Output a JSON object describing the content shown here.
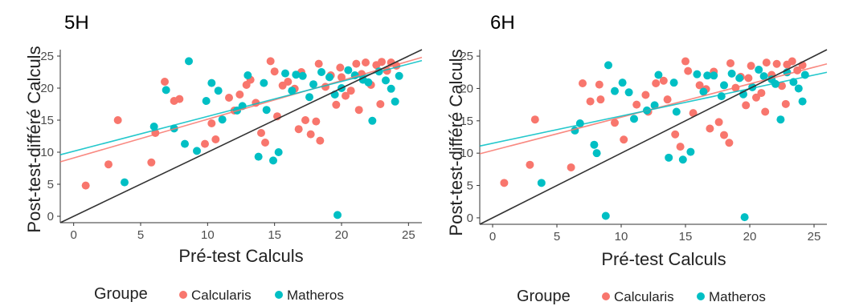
{
  "chart_data": [
    {
      "type": "scatter",
      "title": "5H",
      "xlabel": "Pré-test Calculs",
      "ylabel": "Post-test-différé Calculs",
      "xlim": [
        -1,
        26
      ],
      "ylim": [
        -1,
        26
      ],
      "xticks": [
        "0",
        "5",
        "10",
        "15",
        "20",
        "25"
      ],
      "yticks": [
        "0",
        "5",
        "10",
        "15",
        "20",
        "25"
      ],
      "grid": false,
      "series": [
        {
          "name": "Calcularis",
          "color": "#F8766D",
          "points": [
            [
              0.9,
              4.8
            ],
            [
              2.6,
              8.1
            ],
            [
              3.3,
              15.0
            ],
            [
              5.8,
              8.4
            ],
            [
              6.1,
              13.0
            ],
            [
              6.8,
              21.0
            ],
            [
              7.5,
              18.0
            ],
            [
              7.9,
              18.3
            ],
            [
              9.8,
              11.3
            ],
            [
              10.3,
              14.5
            ],
            [
              10.6,
              12.0
            ],
            [
              11.6,
              18.5
            ],
            [
              12.4,
              19.0
            ],
            [
              12.9,
              20.5
            ],
            [
              13.6,
              17.7
            ],
            [
              14.0,
              13.0
            ],
            [
              14.3,
              11.5
            ],
            [
              14.7,
              24.2
            ],
            [
              15.2,
              15.6
            ],
            [
              15.6,
              20.4
            ],
            [
              16.0,
              21.0
            ],
            [
              16.5,
              19.9
            ],
            [
              17.0,
              22.5
            ],
            [
              17.3,
              15.0
            ],
            [
              17.7,
              12.8
            ],
            [
              18.1,
              14.8
            ],
            [
              18.4,
              11.8
            ],
            [
              18.8,
              20.2
            ],
            [
              19.2,
              22.0
            ],
            [
              19.6,
              17.4
            ],
            [
              19.9,
              23.2
            ],
            [
              20.3,
              18.8
            ],
            [
              20.7,
              19.6
            ],
            [
              21.1,
              23.8
            ],
            [
              21.5,
              22.2
            ],
            [
              21.8,
              24.0
            ],
            [
              22.2,
              20.5
            ],
            [
              22.6,
              23.6
            ],
            [
              23.0,
              24.1
            ],
            [
              23.4,
              22.7
            ],
            [
              23.7,
              24.0
            ],
            [
              24.1,
              23.5
            ],
            [
              22.9,
              17.5
            ],
            [
              21.3,
              16.6
            ],
            [
              20.0,
              21.7
            ],
            [
              18.3,
              23.8
            ],
            [
              16.8,
              13.6
            ],
            [
              15.0,
              22.6
            ],
            [
              13.2,
              21.3
            ],
            [
              12.0,
              16.5
            ]
          ],
          "trend": [
            [
              -1,
              8.5
            ],
            [
              26,
              24.8
            ]
          ]
        },
        {
          "name": "Matheros",
          "color": "#00BFC4",
          "points": [
            [
              3.8,
              5.3
            ],
            [
              6.0,
              14.0
            ],
            [
              6.9,
              19.7
            ],
            [
              7.5,
              13.7
            ],
            [
              8.6,
              24.2
            ],
            [
              9.2,
              10.2
            ],
            [
              9.9,
              18.0
            ],
            [
              10.3,
              20.8
            ],
            [
              11.1,
              15.1
            ],
            [
              12.2,
              16.5
            ],
            [
              13.0,
              22.0
            ],
            [
              13.8,
              9.3
            ],
            [
              14.4,
              16.6
            ],
            [
              14.9,
              8.7
            ],
            [
              15.3,
              10.0
            ],
            [
              15.8,
              22.3
            ],
            [
              16.3,
              19.6
            ],
            [
              17.1,
              21.9
            ],
            [
              17.6,
              18.6
            ],
            [
              18.5,
              22.5
            ],
            [
              19.1,
              21.7
            ],
            [
              19.7,
              0.2
            ],
            [
              20.0,
              20.0
            ],
            [
              20.5,
              22.8
            ],
            [
              21.0,
              22.0
            ],
            [
              21.6,
              21.3
            ],
            [
              22.0,
              20.9
            ],
            [
              22.3,
              14.9
            ],
            [
              22.8,
              22.6
            ],
            [
              23.3,
              21.2
            ],
            [
              23.7,
              19.9
            ],
            [
              24.0,
              17.9
            ],
            [
              24.3,
              21.9
            ],
            [
              19.5,
              19.0
            ],
            [
              17.9,
              20.6
            ],
            [
              16.6,
              22.1
            ],
            [
              14.2,
              20.8
            ],
            [
              12.6,
              17.2
            ],
            [
              10.8,
              19.6
            ],
            [
              8.3,
              11.3
            ]
          ],
          "trend": [
            [
              -1,
              9.6
            ],
            [
              26,
              24.3
            ]
          ]
        }
      ],
      "reference_line": [
        [
          -1,
          -1
        ],
        [
          26,
          26
        ]
      ]
    },
    {
      "type": "scatter",
      "title": "6H",
      "xlabel": "Pré-test Calculs",
      "ylabel": "Post-test-différé Calculs",
      "xlim": [
        -1,
        26
      ],
      "ylim": [
        -1,
        26
      ],
      "xticks": [
        "0",
        "5",
        "10",
        "15",
        "20",
        "25"
      ],
      "yticks": [
        "0",
        "5",
        "10",
        "15",
        "20",
        "25"
      ],
      "grid": false,
      "series": [
        {
          "name": "Calcularis",
          "color": "#F8766D",
          "points": [
            [
              0.9,
              5.4
            ],
            [
              2.9,
              8.2
            ],
            [
              3.3,
              15.2
            ],
            [
              6.1,
              7.8
            ],
            [
              7.0,
              20.8
            ],
            [
              7.6,
              18.0
            ],
            [
              8.4,
              18.3
            ],
            [
              9.5,
              14.7
            ],
            [
              10.2,
              12.1
            ],
            [
              11.2,
              17.5
            ],
            [
              11.9,
              19.0
            ],
            [
              12.7,
              20.8
            ],
            [
              13.6,
              18.3
            ],
            [
              14.2,
              12.9
            ],
            [
              14.6,
              11.0
            ],
            [
              15.0,
              24.2
            ],
            [
              15.6,
              16.2
            ],
            [
              16.1,
              20.5
            ],
            [
              16.6,
              19.9
            ],
            [
              17.2,
              22.6
            ],
            [
              17.6,
              14.8
            ],
            [
              18.0,
              12.8
            ],
            [
              18.4,
              11.6
            ],
            [
              18.9,
              20.1
            ],
            [
              19.3,
              21.8
            ],
            [
              19.7,
              17.4
            ],
            [
              20.1,
              23.5
            ],
            [
              20.5,
              18.6
            ],
            [
              20.9,
              19.3
            ],
            [
              21.3,
              24.0
            ],
            [
              21.7,
              22.1
            ],
            [
              22.1,
              23.8
            ],
            [
              22.5,
              20.4
            ],
            [
              22.9,
              23.7
            ],
            [
              23.3,
              24.2
            ],
            [
              23.7,
              22.8
            ],
            [
              24.1,
              23.6
            ],
            [
              22.8,
              17.6
            ],
            [
              21.2,
              16.4
            ],
            [
              19.9,
              21.6
            ],
            [
              18.5,
              23.9
            ],
            [
              16.9,
              13.8
            ],
            [
              15.2,
              22.7
            ],
            [
              13.3,
              21.2
            ],
            [
              12.1,
              16.4
            ],
            [
              8.3,
              20.6
            ]
          ],
          "trend": [
            [
              -1,
              9.9
            ],
            [
              26,
              23.8
            ]
          ]
        },
        {
          "name": "Matheros",
          "color": "#00BFC4",
          "points": [
            [
              3.8,
              5.4
            ],
            [
              6.4,
              13.5
            ],
            [
              7.9,
              11.3
            ],
            [
              8.8,
              0.3
            ],
            [
              9.0,
              23.6
            ],
            [
              9.5,
              19.6
            ],
            [
              10.1,
              20.9
            ],
            [
              11.0,
              15.3
            ],
            [
              12.0,
              16.6
            ],
            [
              12.9,
              22.1
            ],
            [
              13.7,
              9.3
            ],
            [
              14.3,
              16.4
            ],
            [
              14.8,
              9.0
            ],
            [
              15.4,
              10.2
            ],
            [
              15.9,
              22.2
            ],
            [
              16.4,
              19.5
            ],
            [
              17.2,
              22.0
            ],
            [
              17.8,
              18.8
            ],
            [
              18.6,
              22.3
            ],
            [
              19.2,
              21.6
            ],
            [
              19.6,
              0.1
            ],
            [
              20.2,
              20.2
            ],
            [
              20.7,
              22.9
            ],
            [
              21.1,
              21.9
            ],
            [
              21.7,
              21.4
            ],
            [
              22.0,
              20.7
            ],
            [
              22.4,
              15.2
            ],
            [
              22.9,
              22.5
            ],
            [
              23.4,
              21.0
            ],
            [
              23.8,
              20.0
            ],
            [
              24.1,
              18.0
            ],
            [
              24.3,
              22.1
            ],
            [
              19.5,
              19.1
            ],
            [
              18.0,
              20.5
            ],
            [
              16.7,
              22.0
            ],
            [
              14.1,
              20.9
            ],
            [
              12.6,
              17.4
            ],
            [
              10.6,
              19.4
            ],
            [
              8.1,
              10.0
            ],
            [
              6.8,
              14.6
            ]
          ],
          "trend": [
            [
              -1,
              11.1
            ],
            [
              26,
              22.5
            ]
          ]
        }
      ],
      "reference_line": [
        [
          -1,
          -1
        ],
        [
          26,
          26
        ]
      ]
    }
  ],
  "legend": {
    "title": "Groupe",
    "items": [
      {
        "label": "Calcularis",
        "color": "#F8766D"
      },
      {
        "label": "Matheros",
        "color": "#00BFC4"
      }
    ]
  }
}
